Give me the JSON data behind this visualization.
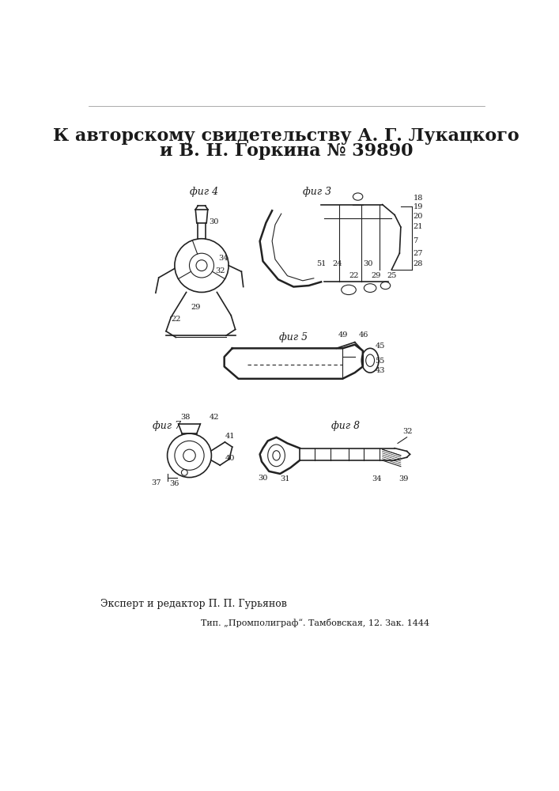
{
  "title_line1": "К авторскому свидетельству А. Г. Лукацкого",
  "title_line2": "и В. Н. Горкина № 39890",
  "footer_left": "Эксперт и редактор П. П. Гурьянов",
  "footer_right": "Тип. „Промполиграф“. Тамбовская, 12. Зак. 1444",
  "background_color": "#ffffff",
  "text_color": "#1a1a1a",
  "title_fontsize": 16,
  "footer_fontsize": 9,
  "fig_label_fontsize": 9
}
